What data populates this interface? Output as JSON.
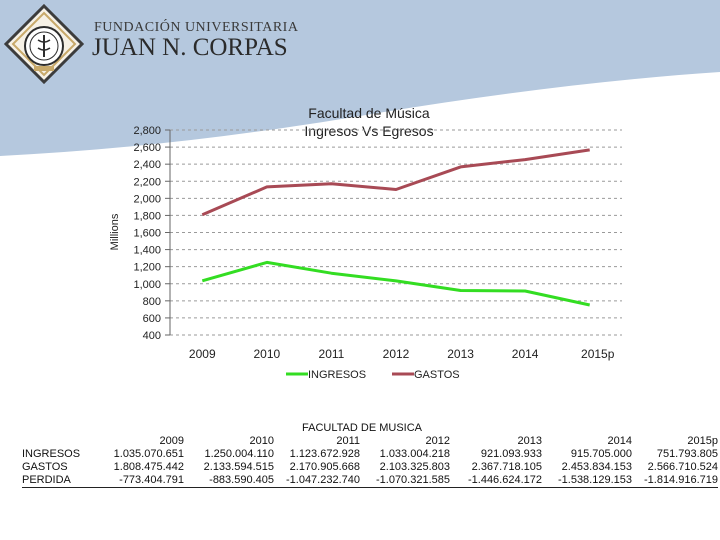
{
  "header": {
    "institution_line1": "FUNDACIÓN UNIVERSITARIA",
    "institution_line2": "JUAN N. CORPAS",
    "banner_color": "#b5c8de"
  },
  "chart_data": {
    "type": "line",
    "title": "Facultad de Música",
    "subtitle": "Ingresos Vs Egresos",
    "xlabel": "",
    "ylabel": "Millions",
    "ylim": [
      400,
      2800
    ],
    "ytick_step": 200,
    "yticks": [
      "400",
      "600",
      "800",
      "1,000",
      "1,200",
      "1,400",
      "1,600",
      "1,800",
      "2,000",
      "2,200",
      "2,400",
      "2,600",
      "2,800"
    ],
    "grid": true,
    "legend_position": "bottom",
    "categories": [
      "2009",
      "2010",
      "2011",
      "2012",
      "2013",
      "2014",
      "2015p"
    ],
    "series": [
      {
        "name": "INGRESOS",
        "color": "#33dd22",
        "values": [
          1035.070651,
          1250.00411,
          1123.672928,
          1033.004218,
          921.093933,
          915.705,
          751.793805
        ]
      },
      {
        "name": "GASTOS",
        "color": "#a84a55",
        "values": [
          1808.475442,
          2133.594515,
          2170.905668,
          2103.325803,
          2367.718105,
          2453.834153,
          2566.710524
        ]
      }
    ]
  },
  "table": {
    "title": "FACULTAD DE MUSICA",
    "years": [
      "2009",
      "2010",
      "2011",
      "2012",
      "2013",
      "2014",
      "2015p"
    ],
    "rows": [
      {
        "label": "INGRESOS",
        "values": [
          "1.035.070.651",
          "1.250.004.110",
          "1.123.672.928",
          "1.033.004.218",
          "921.093.933",
          "915.705.000",
          "751.793.805"
        ]
      },
      {
        "label": "GASTOS",
        "values": [
          "1.808.475.442",
          "2.133.594.515",
          "2.170.905.668",
          "2.103.325.803",
          "2.367.718.105",
          "2.453.834.153",
          "2.566.710.524"
        ]
      },
      {
        "label": "PERDIDA",
        "values": [
          "-773.404.791",
          "-883.590.405",
          "-1.047.232.740",
          "-1.070.321.585",
          "-1.446.624.172",
          "-1.538.129.153",
          "-1.814.916.719"
        ]
      }
    ]
  }
}
